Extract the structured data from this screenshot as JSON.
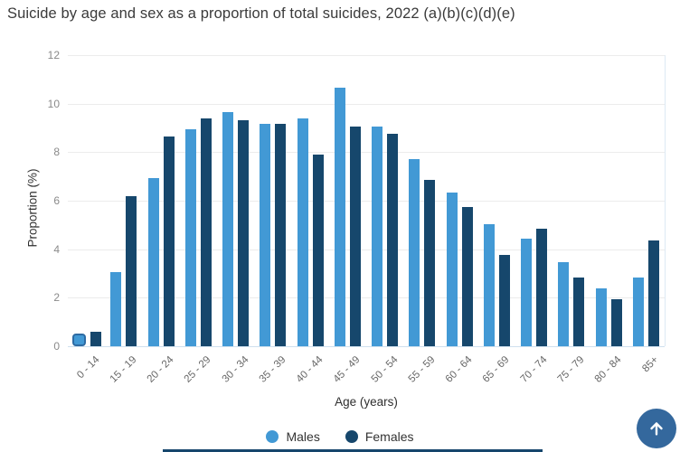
{
  "page_title": "Suicide by age and sex as a proportion of total suicides, 2022 (a)(b)(c)(d)(e)",
  "chart_data": {
    "type": "bar",
    "title": "Suicide by age and sex as a proportion of total suicides, 2022 (a)(b)(c)(d)(e)",
    "xlabel": "Age (years)",
    "ylabel": "Proportion (%)",
    "ylim": [
      0,
      12
    ],
    "yticks": [
      0,
      2,
      4,
      6,
      8,
      10,
      12
    ],
    "grid": true,
    "legend_position": "bottom",
    "categories": [
      "0 - 14",
      "15 - 19",
      "20 - 24",
      "25 - 29",
      "30 - 34",
      "35 - 39",
      "40 - 44",
      "45 - 49",
      "50 - 54",
      "55 - 59",
      "60 - 64",
      "65 - 69",
      "70 - 74",
      "75 - 79",
      "80 - 84",
      "85+"
    ],
    "series": [
      {
        "name": "Males",
        "color": "#4299d5",
        "values": [
          0.3,
          3.05,
          6.95,
          8.95,
          9.65,
          9.15,
          9.4,
          10.65,
          9.05,
          7.7,
          6.35,
          5.05,
          4.45,
          3.45,
          2.4,
          2.85
        ]
      },
      {
        "name": "Females",
        "color": "#16476c",
        "values": [
          0.6,
          6.2,
          8.65,
          9.4,
          9.3,
          9.15,
          7.9,
          9.05,
          8.75,
          6.85,
          5.75,
          3.75,
          4.85,
          2.85,
          1.95,
          4.35
        ]
      }
    ],
    "highlight": {
      "series": "Males",
      "index": 0,
      "ring_color": "#2d6ba3"
    }
  },
  "legend": {
    "items": [
      {
        "label": "Males",
        "color": "#4299d5"
      },
      {
        "label": "Females",
        "color": "#16476c"
      }
    ]
  },
  "scroll_top_button": {
    "icon": "up-arrow-icon",
    "color": "#34689d"
  },
  "footer_strip_color": "#16466c",
  "colors": {
    "males": "#4299d5",
    "females": "#16476c",
    "gridline": "#ececec",
    "zero_line": "#cfe0ee",
    "tick_text": "#8a8a8a",
    "label_text": "#666666",
    "title_text": "#3a3a3a"
  }
}
